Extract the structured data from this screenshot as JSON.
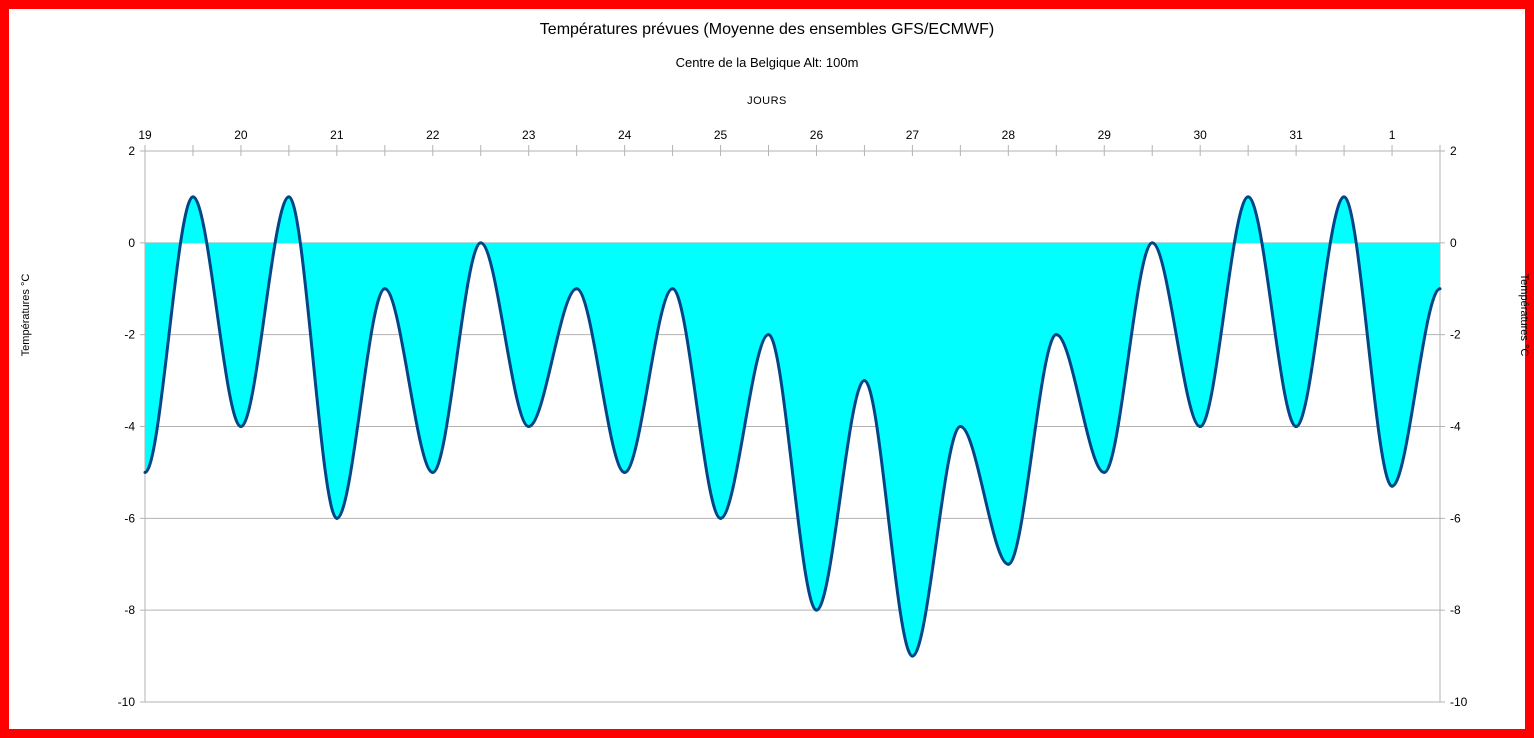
{
  "chart_data": {
    "type": "area",
    "title": "Températures prévues (Moyenne des ensembles GFS/ECMWF)",
    "subtitle": "Centre de la Belgique Alt: 100m",
    "x2label": "JOURS",
    "ylabel": "Températures °C",
    "y2label": "Températures °C",
    "ylim": [
      -10,
      2
    ],
    "yticks": [
      2,
      0,
      -2,
      -4,
      -6,
      -8,
      -10
    ],
    "xlim": [
      0,
      13.5
    ],
    "x_day_labels": [
      "19",
      "20",
      "21",
      "22",
      "23",
      "24",
      "25",
      "26",
      "27",
      "28",
      "29",
      "30",
      "31",
      "1"
    ],
    "x_day_positions": [
      0,
      1,
      2,
      3,
      4,
      5,
      6,
      7,
      8,
      9,
      10,
      11,
      12,
      13
    ],
    "grid": true,
    "fill_color": "#00ffff",
    "line_color": "#004586",
    "series": [
      {
        "x": [
          0,
          0.5,
          1,
          1.5,
          2,
          2.5,
          3,
          3.5,
          4,
          4.5,
          5,
          5.5,
          6,
          6.5,
          7,
          7.5,
          8,
          8.5,
          9,
          9.5,
          10,
          10.5,
          11,
          11.5,
          12,
          12.5,
          13,
          13.5
        ],
        "values": [
          -5,
          1,
          -4,
          1,
          -6,
          -1,
          -5,
          0,
          -4,
          -1,
          -5,
          -1,
          -6,
          -2,
          -8,
          -3,
          -9,
          -4,
          -7,
          -2,
          -5,
          0,
          -4,
          1,
          -4,
          1,
          -5.3,
          -1
        ]
      }
    ]
  },
  "colors": {
    "border": "#ff0000",
    "gridline": "#b3b3b3"
  }
}
